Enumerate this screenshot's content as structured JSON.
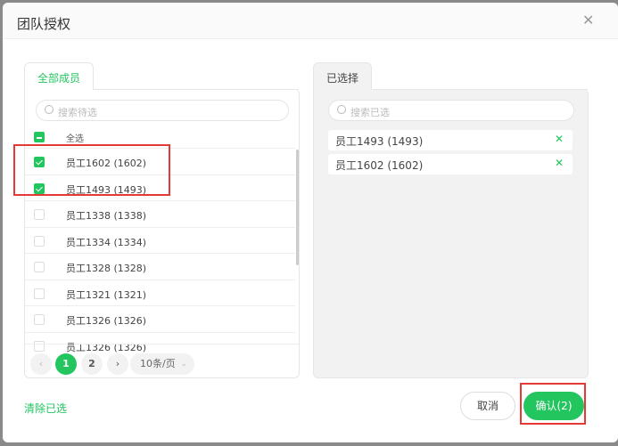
{
  "dialog": {
    "title": "团队授权",
    "close_icon": "close-icon"
  },
  "left": {
    "tab": "全部成员",
    "search_placeholder": "搜索待选",
    "select_all": "全选",
    "rows": [
      {
        "label": "员工1602 (1602)",
        "checked": true
      },
      {
        "label": "员工1493 (1493)",
        "checked": true
      },
      {
        "label": "员工1338 (1338)",
        "checked": false
      },
      {
        "label": "员工1334 (1334)",
        "checked": false
      },
      {
        "label": "员工1328 (1328)",
        "checked": false
      },
      {
        "label": "员工1321 (1321)",
        "checked": false
      },
      {
        "label": "员工1326 (1326)",
        "checked": false
      },
      {
        "label": "员工1326 (1326)",
        "checked": false
      }
    ],
    "pagination": {
      "prev": "‹",
      "pages": [
        "1",
        "2"
      ],
      "current": "1",
      "next": "›",
      "page_size": "10条/页"
    }
  },
  "right": {
    "tab": "已选择",
    "search_placeholder": "搜索已选",
    "selected": [
      {
        "label": "员工1493 (1493)"
      },
      {
        "label": "员工1602 (1602)"
      }
    ],
    "remove": "✕"
  },
  "footer": {
    "clear": "清除已选",
    "cancel": "取消",
    "confirm": "确认(2)"
  },
  "colors": {
    "accent": "#22c55e",
    "highlight": "#e53935"
  }
}
